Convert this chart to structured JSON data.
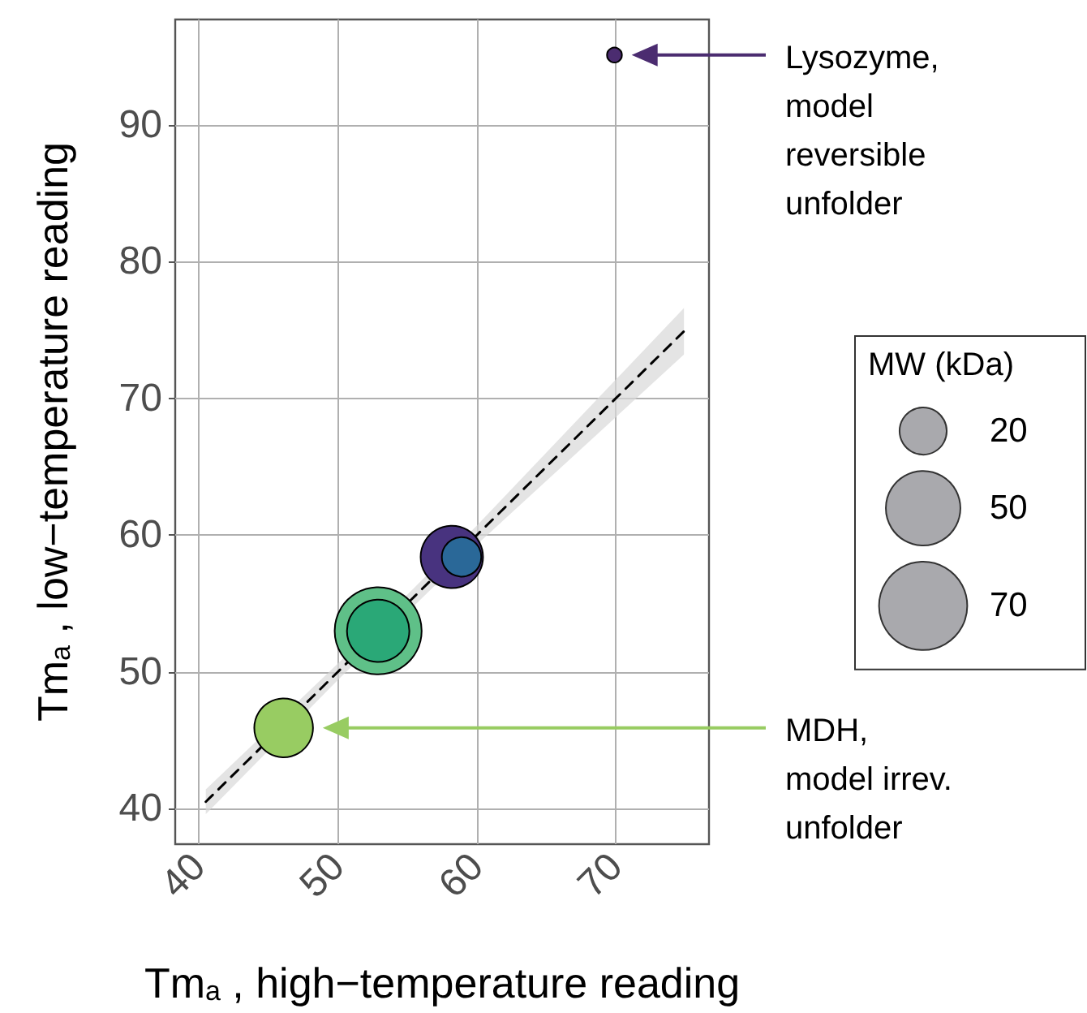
{
  "chart_data": {
    "type": "bubble",
    "xlabel": "Tm$_{a}$ , high−temperature reading",
    "ylabel": "Tm$_{a}$ , low−temperature reading",
    "legend_title": "MW (kDa)",
    "size_legend": [
      20,
      50,
      70
    ],
    "grid": true,
    "xlim": [
      38.3,
      76.7
    ],
    "xticks": [
      40,
      50,
      60,
      70
    ],
    "ylim": [
      37.4,
      97.7
    ],
    "yticks": [
      40,
      50,
      60,
      70,
      80,
      90
    ],
    "series": [
      {
        "x": [
          69.9,
          58.2,
          58.9,
          52.9,
          52.9,
          46.1
        ],
        "values": [
          95.1,
          58.4,
          58.4,
          53.0,
          53.0,
          45.9
        ],
        "sizes": [
          2,
          35,
          14,
          68,
          35,
          31
        ],
        "colors": [
          "#4b2c70",
          "#48337f",
          "#2a6898",
          "#5fc088",
          "#2aa877",
          "#98cc62"
        ]
      },
      {
        "type": "line",
        "color": "#000000",
        "line_style": "dashed",
        "marker": "none",
        "x": [
          40.5,
          50,
          60,
          74.9
        ],
        "values": [
          40.5,
          50,
          60,
          74.9
        ],
        "lower": [
          39.6,
          49.4,
          59.3,
          73.2
        ],
        "upper": [
          41.4,
          50.6,
          60.7,
          76.6
        ]
      }
    ],
    "annotations": [
      "Lysozyme,\nmodel\nreversible\nunfolder",
      "MDH,\nmodel irrev.\nunfolder"
    ]
  }
}
